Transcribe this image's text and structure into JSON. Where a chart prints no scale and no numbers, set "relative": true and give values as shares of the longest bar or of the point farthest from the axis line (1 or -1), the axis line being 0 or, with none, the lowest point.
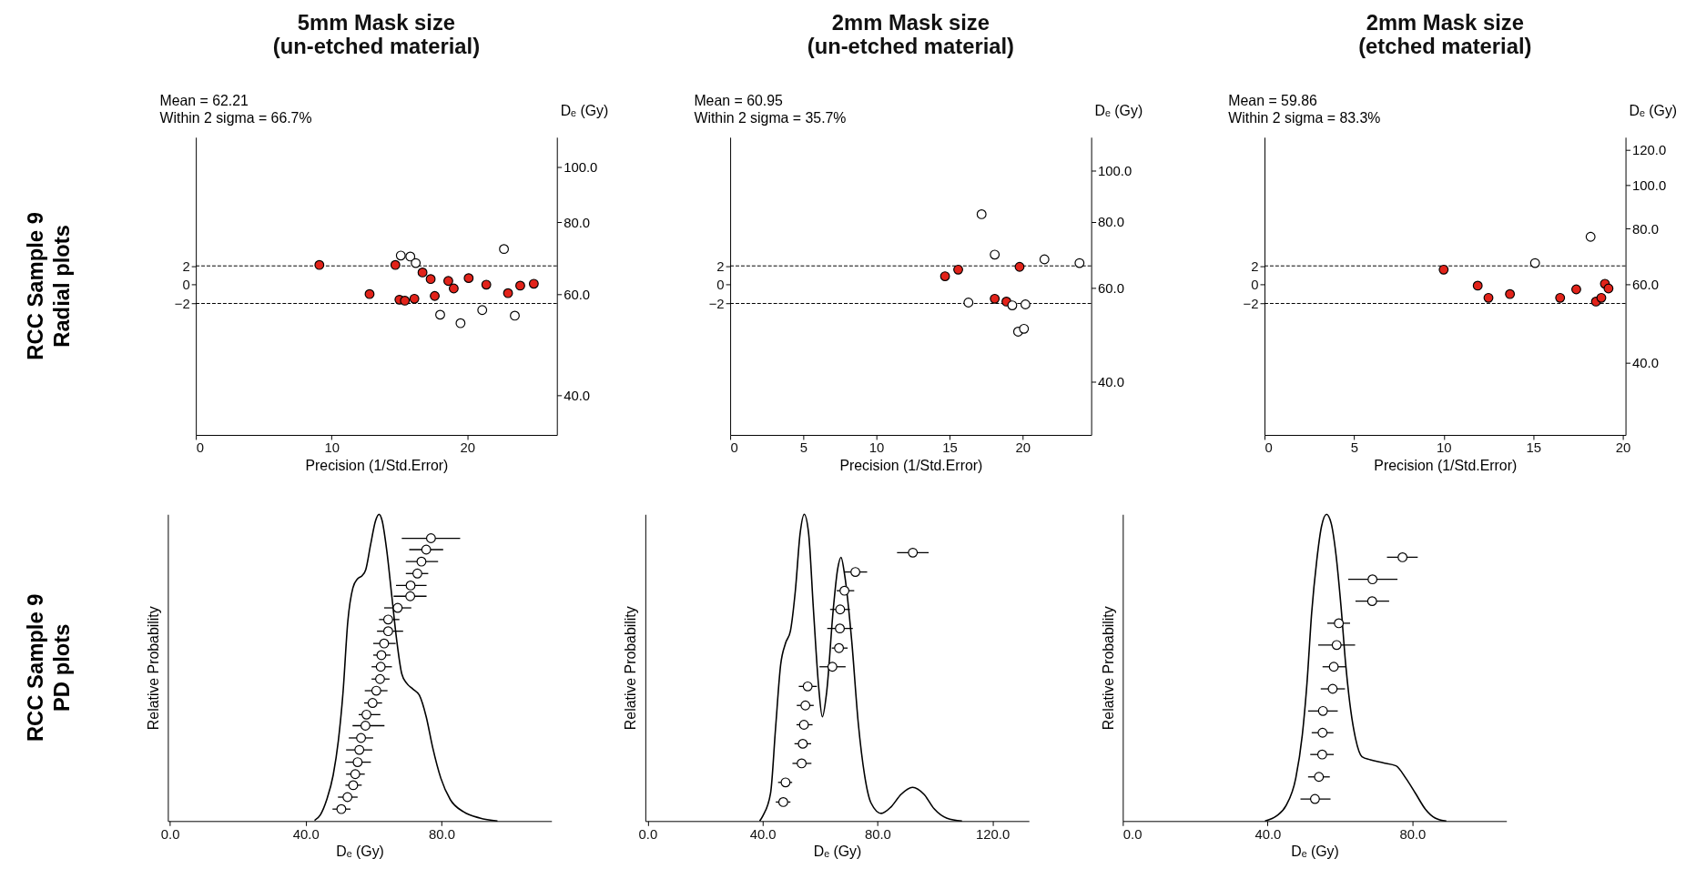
{
  "chart_data": [
    {
      "type": "scatter",
      "title": "5mm Mask size\n(un-etched material)",
      "xlabel": "Precision (1/Std.Error)",
      "y2label": "Dₑ (Gy)",
      "annotations": [
        "Mean = 62.21",
        "Within 2 sigma = 66.7%",
        "RCC Sample 9\nRadial plots"
      ],
      "xlim": [
        0,
        26.6
      ],
      "xticks": [
        0,
        10,
        20
      ],
      "ylim": [
        -16,
        15.7
      ],
      "yticks": [
        -2,
        0,
        2
      ],
      "y2lim": [
        34.1,
        112.6
      ],
      "y2ticks": [
        {
          "value": 40,
          "label": "40.0"
        },
        {
          "value": 60,
          "label": "60.0"
        },
        {
          "value": 80,
          "label": "80.0"
        },
        {
          "value": 100,
          "label": "100.0"
        }
      ],
      "log": "y2",
      "marker": "circle",
      "grid": false,
      "ref_lines": [
        {
          "axis": "y",
          "value": 2,
          "line_style": "dashed"
        },
        {
          "axis": "y",
          "value": -2,
          "line_style": "dashed"
        }
      ],
      "series": [
        {
          "color": "#e2231a",
          "x": [
            9.1,
            12.8,
            14.7,
            15.0,
            15.4,
            16.1,
            16.7,
            17.3,
            17.6,
            18.6,
            19.0,
            20.1,
            21.4,
            23.0,
            23.9,
            24.9
          ],
          "values": [
            2.1,
            -1.0,
            2.1,
            -1.6,
            -1.7,
            -1.5,
            1.3,
            0.6,
            -1.2,
            0.4,
            -0.4,
            0.7,
            0.0,
            -0.9,
            -0.1,
            0.1
          ]
        },
        {
          "color": "#ffffff",
          "x": [
            15.1,
            15.8,
            16.2,
            18.0,
            19.5,
            21.1,
            22.7,
            23.5
          ],
          "values": [
            3.1,
            3.0,
            2.3,
            -3.2,
            -4.1,
            -2.7,
            3.8,
            -3.3
          ]
        }
      ]
    },
    {
      "type": "scatter",
      "title": "2mm Mask size\n(un-etched material)",
      "xlabel": "Precision (1/Std.Error)",
      "y2label": "Dₑ (Gy)",
      "annotations": [
        "Mean = 60.95",
        "Within 2 sigma = 35.7%"
      ],
      "xlim": [
        0,
        24.7
      ],
      "xticks": [
        0,
        5,
        10,
        15,
        20
      ],
      "ylim": [
        -16,
        15.7
      ],
      "yticks": [
        -2,
        0,
        2
      ],
      "y2lim": [
        31.8,
        115.4
      ],
      "y2ticks": [
        {
          "value": 40,
          "label": "40.0"
        },
        {
          "value": 60,
          "label": "60.0"
        },
        {
          "value": 80,
          "label": "80.0"
        },
        {
          "value": 100,
          "label": "100.0"
        }
      ],
      "log": "y2",
      "marker": "circle",
      "grid": false,
      "ref_lines": [
        {
          "axis": "y",
          "value": 2,
          "line_style": "dashed"
        },
        {
          "axis": "y",
          "value": -2,
          "line_style": "dashed"
        }
      ],
      "series": [
        {
          "color": "#e2231a",
          "x": [
            14.7,
            15.6,
            19.8,
            18.1,
            18.9
          ],
          "values": [
            0.9,
            1.6,
            1.9,
            -1.5,
            -1.8
          ]
        },
        {
          "color": "#ffffff",
          "x": [
            17.2,
            18.1,
            21.5,
            23.9,
            16.3,
            19.3,
            20.2,
            19.7,
            20.1
          ],
          "values": [
            7.5,
            3.2,
            2.7,
            2.3,
            -1.9,
            -2.2,
            -2.1,
            -5.0,
            -4.7
          ]
        }
      ]
    },
    {
      "type": "scatter",
      "title": "2mm Mask size\n(etched material)",
      "xlabel": "Precision (1/Std.Error)",
      "y2label": "Dₑ (Gy)",
      "annotations": [
        "Mean = 59.86",
        "Within 2 sigma = 83.3%"
      ],
      "xlim": [
        0,
        20.15
      ],
      "xticks": [
        0,
        5,
        10,
        15,
        20
      ],
      "ylim": [
        -16,
        15.7
      ],
      "yticks": [
        -2,
        0,
        2
      ],
      "y2lim": [
        27.5,
        128.3
      ],
      "y2ticks": [
        {
          "value": 40,
          "label": "40.0"
        },
        {
          "value": 60,
          "label": "60.0"
        },
        {
          "value": 80,
          "label": "80.0"
        },
        {
          "value": 100,
          "label": "100.0"
        },
        {
          "value": 120,
          "label": "120.0"
        }
      ],
      "log": "y2",
      "marker": "circle",
      "grid": false,
      "ref_lines": [
        {
          "axis": "y",
          "value": 2,
          "line_style": "dashed"
        },
        {
          "axis": "y",
          "value": -2,
          "line_style": "dashed"
        }
      ],
      "series": [
        {
          "color": "#e2231a",
          "x": [
            10.0,
            11.9,
            12.5,
            13.7,
            16.5,
            17.4,
            18.5,
            18.8,
            19.0,
            19.2
          ],
          "values": [
            1.6,
            -0.1,
            -1.4,
            -1.0,
            -1.4,
            -0.5,
            -1.8,
            -1.4,
            0.1,
            -0.4
          ]
        },
        {
          "color": "#ffffff",
          "x": [
            15.1,
            18.2
          ],
          "values": [
            2.3,
            5.1
          ]
        }
      ]
    },
    {
      "type": "line",
      "xlabel": "Dₑ (Gy)",
      "ylabel": "Relative Probability",
      "relative": true,
      "annotations": [
        "RCC Sample 9\nPD plots"
      ],
      "xlim": [
        -0.6,
        112.4
      ],
      "xticks": [
        {
          "value": 0,
          "label": "0.0"
        },
        {
          "value": 40,
          "label": "40.0"
        },
        {
          "value": 80,
          "label": "80.0"
        }
      ],
      "grid": false,
      "series": [
        {
          "type": "line",
          "color": "#000000",
          "marker": "none",
          "x": [
            42.6,
            44.3,
            46.2,
            48.1,
            49.6,
            51.0,
            52.4,
            53.9,
            55.3,
            56.6,
            57.7,
            59.1,
            60.6,
            61.6,
            62.5,
            63.9,
            65.4,
            66.8,
            68.3,
            69.7,
            71.6,
            73.5,
            75.5,
            77.4,
            79.8,
            82.6,
            86.5,
            91.3,
            96.5
          ],
          "values": [
            0.002,
            0.02,
            0.07,
            0.15,
            0.26,
            0.42,
            0.65,
            0.76,
            0.79,
            0.8,
            0.82,
            0.9,
            0.98,
            1.0,
            0.98,
            0.88,
            0.73,
            0.59,
            0.48,
            0.45,
            0.43,
            0.41,
            0.34,
            0.24,
            0.14,
            0.07,
            0.03,
            0.01,
            0
          ]
        },
        {
          "type": "scatter",
          "color": "#ffffff",
          "marker": "circle",
          "x": [
            76.9,
            75.5,
            74.1,
            72.9,
            70.9,
            70.8,
            67.1,
            64.3,
            64.3,
            63.1,
            62.3,
            62.1,
            61.9,
            60.8,
            59.7,
            57.9,
            57.6,
            56.3,
            55.8,
            55.3,
            54.6,
            54.0,
            52.3,
            50.5
          ],
          "values": [
            0.922,
            0.885,
            0.846,
            0.807,
            0.768,
            0.733,
            0.695,
            0.657,
            0.619,
            0.579,
            0.541,
            0.503,
            0.463,
            0.425,
            0.385,
            0.347,
            0.311,
            0.271,
            0.232,
            0.192,
            0.153,
            0.117,
            0.078,
            0.039
          ],
          "xerrors": [
            [
              68.3,
              85.5
            ],
            [
              70.5,
              80.5
            ],
            [
              69.5,
              79.0
            ],
            [
              69.5,
              76.1
            ],
            [
              66.6,
              75.6
            ],
            [
              65.9,
              75.6
            ],
            [
              63.1,
              71.1
            ],
            [
              61.6,
              67.6
            ],
            [
              61.0,
              68.7
            ],
            [
              59.9,
              66.5
            ],
            [
              59.9,
              65.0
            ],
            [
              59.4,
              65.4
            ],
            [
              59.4,
              64.7
            ],
            [
              57.4,
              64.1
            ],
            [
              57.2,
              62.5
            ],
            [
              55.6,
              62.0
            ],
            [
              53.8,
              63.2
            ],
            [
              52.7,
              59.9
            ],
            [
              51.9,
              59.6
            ],
            [
              51.7,
              59.2
            ],
            [
              51.9,
              57.4
            ],
            [
              51.7,
              56.5
            ],
            [
              49.5,
              55.3
            ],
            [
              47.9,
              53.2
            ]
          ]
        }
      ]
    },
    {
      "type": "line",
      "xlabel": "Dₑ (Gy)",
      "ylabel": "Relative Probability",
      "relative": true,
      "xlim": [
        -0.8,
        132.7
      ],
      "xticks": [
        {
          "value": 0,
          "label": "0.0"
        },
        {
          "value": 40,
          "label": "40.0"
        },
        {
          "value": 80,
          "label": "80.0"
        },
        {
          "value": 120,
          "label": "120.0"
        }
      ],
      "grid": false,
      "series": [
        {
          "type": "line",
          "color": "#000000",
          "marker": "none",
          "x": [
            39.0,
            40.1,
            42.8,
            44.5,
            46.3,
            48.0,
            49.7,
            51.4,
            53.1,
            54.5,
            56.0,
            57.7,
            59.5,
            60.8,
            62.3,
            64.6,
            66.1,
            67.3,
            68.6,
            71.0,
            73.3,
            75.5,
            77.8,
            81.3,
            84.7,
            88.2,
            92.2,
            96.2,
            99.7,
            104.2,
            109.4
          ],
          "values": [
            0,
            0.017,
            0.092,
            0.3,
            0.51,
            0.58,
            0.62,
            0.75,
            0.94,
            1.0,
            0.94,
            0.69,
            0.44,
            0.34,
            0.42,
            0.69,
            0.82,
            0.86,
            0.8,
            0.59,
            0.32,
            0.15,
            0.058,
            0.025,
            0.046,
            0.087,
            0.11,
            0.087,
            0.04,
            0.009,
            0
          ]
        },
        {
          "type": "scatter",
          "color": "#ffffff",
          "marker": "circle",
          "x": [
            92.3,
            72.3,
            68.5,
            67.0,
            66.9,
            66.6,
            64.3,
            55.7,
            54.9,
            54.4,
            54.0,
            53.6,
            48.0,
            47.2
          ],
          "values": [
            0.875,
            0.812,
            0.751,
            0.69,
            0.628,
            0.564,
            0.503,
            0.439,
            0.377,
            0.314,
            0.252,
            0.188,
            0.126,
            0.062
          ],
          "xerrors": [
            [
              86.8,
              97.8
            ],
            [
              68.6,
              76.4
            ],
            [
              65.8,
              71.9
            ],
            [
              63.5,
              70.4
            ],
            [
              62.5,
              71.4
            ],
            [
              64.1,
              69.6
            ],
            [
              59.8,
              68.9
            ],
            [
              52.6,
              58.9
            ],
            [
              51.9,
              57.8
            ],
            [
              51.8,
              57.4
            ],
            [
              51.1,
              56.9
            ],
            [
              50.4,
              57.0
            ],
            [
              45.4,
              50.3
            ],
            [
              44.6,
              49.7
            ]
          ]
        }
      ]
    },
    {
      "type": "line",
      "xlabel": "Dₑ (Gy)",
      "ylabel": "Relative Probability",
      "relative": true,
      "xlim": [
        0,
        106.0
      ],
      "xticks": [
        {
          "value": 0,
          "label": "0.0"
        },
        {
          "value": 40,
          "label": "40.0"
        },
        {
          "value": 80,
          "label": "80.0"
        }
      ],
      "grid": false,
      "series": [
        {
          "type": "line",
          "color": "#000000",
          "marker": "none",
          "x": [
            39.3,
            42.4,
            45.1,
            47.8,
            49.6,
            50.9,
            52.2,
            53.6,
            54.9,
            56.3,
            57.6,
            58.9,
            60.3,
            61.6,
            63.0,
            64.3,
            66.1,
            68.4,
            71.9,
            75.5,
            78.2,
            80.9,
            83.6,
            86.3,
            89.4
          ],
          "values": [
            0,
            0.016,
            0.05,
            0.14,
            0.28,
            0.45,
            0.68,
            0.85,
            0.96,
            1.0,
            0.97,
            0.87,
            0.7,
            0.51,
            0.36,
            0.27,
            0.21,
            0.2,
            0.19,
            0.18,
            0.14,
            0.09,
            0.039,
            0.01,
            0
          ]
        },
        {
          "type": "scatter",
          "color": "#ffffff",
          "marker": "circle",
          "x": [
            77.3,
            69.0,
            68.9,
            59.7,
            59.1,
            58.3,
            58.0,
            55.3,
            55.2,
            55.1,
            54.2,
            53.1
          ],
          "values": [
            0.86,
            0.788,
            0.717,
            0.645,
            0.574,
            0.503,
            0.431,
            0.359,
            0.288,
            0.217,
            0.144,
            0.072
          ],
          "xerrors": [
            [
              73.0,
              81.5
            ],
            [
              62.3,
              75.9
            ],
            [
              64.3,
              73.6
            ],
            [
              56.5,
              62.8
            ],
            [
              54.0,
              64.2
            ],
            [
              55.2,
              61.6
            ],
            [
              54.7,
              61.4
            ],
            [
              51.2,
              59.4
            ],
            [
              52.2,
              58.2
            ],
            [
              51.8,
              58.3
            ],
            [
              51.2,
              57.2
            ],
            [
              49.1,
              57.4
            ]
          ]
        }
      ]
    }
  ]
}
